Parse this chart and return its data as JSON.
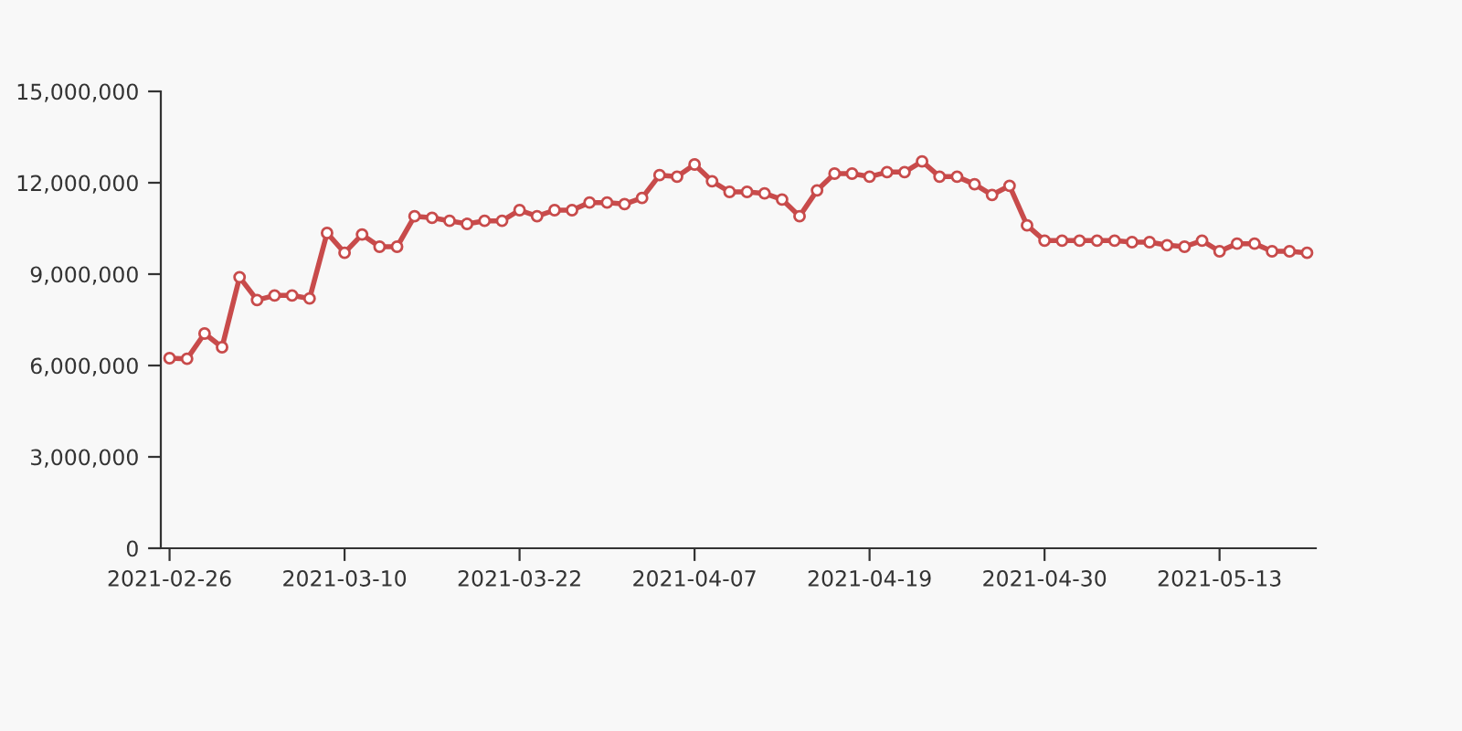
{
  "chart_data": {
    "type": "line",
    "categories": [
      "2021-02-26",
      null,
      null,
      null,
      null,
      null,
      null,
      null,
      null,
      null,
      "2021-03-10",
      null,
      null,
      null,
      null,
      null,
      null,
      null,
      null,
      null,
      "2021-03-22",
      null,
      null,
      null,
      null,
      null,
      null,
      null,
      null,
      null,
      "2021-04-07",
      null,
      null,
      null,
      null,
      null,
      null,
      null,
      null,
      null,
      "2021-04-19",
      null,
      null,
      null,
      null,
      null,
      null,
      null,
      null,
      null,
      "2021-04-30",
      null,
      null,
      null,
      null,
      null,
      null,
      null,
      null,
      null,
      "2021-05-13",
      null,
      null,
      null,
      null,
      null
    ],
    "series": [
      {
        "color": "#c84b4b",
        "values": [
          6240000,
          6220000,
          7050000,
          6600000,
          8900000,
          8150000,
          8300000,
          8300000,
          8200000,
          10350000,
          9700000,
          10300000,
          9900000,
          9900000,
          10900000,
          10850000,
          10750000,
          10650000,
          10750000,
          10750000,
          11100000,
          10900000,
          11100000,
          11100000,
          11350000,
          11350000,
          11300000,
          11500000,
          12250000,
          12200000,
          12600000,
          12050000,
          11700000,
          11700000,
          11650000,
          11450000,
          10900000,
          11750000,
          12300000,
          12300000,
          12200000,
          12350000,
          12350000,
          12700000,
          12200000,
          12200000,
          11950000,
          11600000,
          11900000,
          10600000,
          10100000,
          10100000,
          10100000,
          10100000,
          10100000,
          10050000,
          10050000,
          9950000,
          9900000,
          10100000,
          9750000,
          10000000,
          10000000,
          9750000,
          9750000,
          9700000
        ]
      }
    ],
    "ylim": [
      0,
      15000000
    ],
    "yticks": [
      {
        "value": 0,
        "label": "0"
      },
      {
        "value": 3000000,
        "label": "3,000,000"
      },
      {
        "value": 6000000,
        "label": "6,000,000"
      },
      {
        "value": 9000000,
        "label": "9,000,000"
      },
      {
        "value": 12000000,
        "label": "12,000,000"
      },
      {
        "value": 15000000,
        "label": "15,000,000"
      }
    ],
    "grid": false,
    "legend": false,
    "marker": "circle",
    "line_style": "solid"
  }
}
